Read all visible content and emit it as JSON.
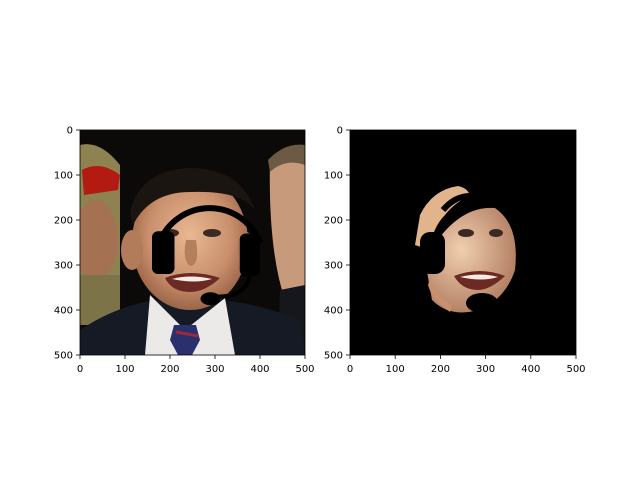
{
  "chart_data": [
    {
      "type": "image",
      "panel": "original face with headset overlay",
      "xlim": [
        0,
        500
      ],
      "ylim": [
        500,
        0
      ],
      "xticks": [
        0,
        100,
        200,
        300,
        400,
        500
      ],
      "yticks": [
        0,
        100,
        200,
        300,
        400,
        500
      ],
      "xlabel": "",
      "ylabel": "",
      "title": "",
      "grid": false,
      "headset": {
        "arc_center": [
          290,
          245
        ],
        "arc_rx": 120,
        "arc_ry": 120,
        "left_pad": {
          "x": 160,
          "y": 225,
          "w": 50,
          "h": 95
        },
        "right_pad": {
          "x": 355,
          "y": 230,
          "w": 45,
          "h": 95
        },
        "mic_arc_end": [
          295,
          370
        ],
        "mic_blob": [
          290,
          375
        ]
      }
    },
    {
      "type": "image",
      "panel": "face segmentation mask applied",
      "xlim": [
        0,
        500
      ],
      "ylim": [
        500,
        0
      ],
      "xticks": [
        0,
        100,
        200,
        300,
        400,
        500
      ],
      "yticks": [
        0,
        100,
        200,
        300,
        400,
        500
      ],
      "xlabel": "",
      "ylabel": "",
      "title": "",
      "grid": false,
      "background": "#000000"
    }
  ]
}
